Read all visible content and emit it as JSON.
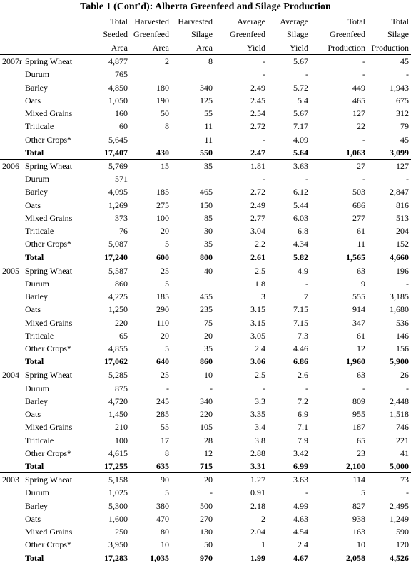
{
  "title": "Table 1 (Cont'd):  Alberta Greenfeed and Silage Production",
  "columns": [
    [
      "Total",
      "Seeded",
      "Area"
    ],
    [
      "Harvested",
      "Greenfeed",
      "Area"
    ],
    [
      "Harvested",
      "Silage",
      "Area"
    ],
    [
      "Average",
      "Greenfeed",
      "Yield"
    ],
    [
      "Average",
      "Silage",
      "Yield"
    ],
    [
      "Total",
      "Greenfeed",
      "Production"
    ],
    [
      "Total",
      "Silage",
      "Production"
    ]
  ],
  "groups": [
    {
      "year": "2007r",
      "rows": [
        [
          "Spring Wheat",
          "4,877",
          "2",
          "8",
          "-",
          "5.67",
          "-",
          "45"
        ],
        [
          "Durum",
          "765",
          null,
          null,
          "-",
          "-",
          "-",
          "-"
        ],
        [
          "Barley",
          "4,850",
          "180",
          "340",
          "2.49",
          "5.72",
          "449",
          "1,943"
        ],
        [
          "Oats",
          "1,050",
          "190",
          "125",
          "2.45",
          "5.4",
          "465",
          "675"
        ],
        [
          "Mixed Grains",
          "160",
          "50",
          "55",
          "2.54",
          "5.67",
          "127",
          "312"
        ],
        [
          "Triticale",
          "60",
          "8",
          "11",
          "2.72",
          "7.17",
          "22",
          "79"
        ],
        [
          "Other Crops*",
          "5,645",
          null,
          "11",
          "-",
          "4.09",
          "-",
          "45"
        ],
        [
          "Total",
          "17,407",
          "430",
          "550",
          "2.47",
          "5.64",
          "1,063",
          "3,099"
        ]
      ]
    },
    {
      "year": "2006",
      "rows": [
        [
          "Spring Wheat",
          "5,769",
          "15",
          "35",
          "1.81",
          "3.63",
          "27",
          "127"
        ],
        [
          "Durum",
          "571",
          null,
          null,
          "-",
          "-",
          "-",
          "-"
        ],
        [
          "Barley",
          "4,095",
          "185",
          "465",
          "2.72",
          "6.12",
          "503",
          "2,847"
        ],
        [
          "Oats",
          "1,269",
          "275",
          "150",
          "2.49",
          "5.44",
          "686",
          "816"
        ],
        [
          "Mixed Grains",
          "373",
          "100",
          "85",
          "2.77",
          "6.03",
          "277",
          "513"
        ],
        [
          "Triticale",
          "76",
          "20",
          "30",
          "3.04",
          "6.8",
          "61",
          "204"
        ],
        [
          "Other Crops*",
          "5,087",
          "5",
          "35",
          "2.2",
          "4.34",
          "11",
          "152"
        ],
        [
          "Total",
          "17,240",
          "600",
          "800",
          "2.61",
          "5.82",
          "1,565",
          "4,660"
        ]
      ]
    },
    {
      "year": "2005",
      "rows": [
        [
          "Spring Wheat",
          "5,587",
          "25",
          "40",
          "2.5",
          "4.9",
          "63",
          "196"
        ],
        [
          "Durum",
          "860",
          "5",
          null,
          "1.8",
          "-",
          "9",
          "-"
        ],
        [
          "Barley",
          "4,225",
          "185",
          "455",
          "3",
          "7",
          "555",
          "3,185"
        ],
        [
          "Oats",
          "1,250",
          "290",
          "235",
          "3.15",
          "7.15",
          "914",
          "1,680"
        ],
        [
          "Mixed Grains",
          "220",
          "110",
          "75",
          "3.15",
          "7.15",
          "347",
          "536"
        ],
        [
          "Triticale",
          "65",
          "20",
          "20",
          "3.05",
          "7.3",
          "61",
          "146"
        ],
        [
          "Other Crops*",
          "4,855",
          "5",
          "35",
          "2.4",
          "4.46",
          "12",
          "156"
        ],
        [
          "Total",
          "17,062",
          "640",
          "860",
          "3.06",
          "6.86",
          "1,960",
          "5,900"
        ]
      ]
    },
    {
      "year": "2004",
      "rows": [
        [
          "Spring Wheat",
          "5,285",
          "25",
          "10",
          "2.5",
          "2.6",
          "63",
          "26"
        ],
        [
          "Durum",
          "875",
          "-",
          "-",
          "-",
          "-",
          "-",
          "-"
        ],
        [
          "Barley",
          "4,720",
          "245",
          "340",
          "3.3",
          "7.2",
          "809",
          "2,448"
        ],
        [
          "Oats",
          "1,450",
          "285",
          "220",
          "3.35",
          "6.9",
          "955",
          "1,518"
        ],
        [
          "Mixed Grains",
          "210",
          "55",
          "105",
          "3.4",
          "7.1",
          "187",
          "746"
        ],
        [
          "Triticale",
          "100",
          "17",
          "28",
          "3.8",
          "7.9",
          "65",
          "221"
        ],
        [
          "Other Crops*",
          "4,615",
          "8",
          "12",
          "2.88",
          "3.42",
          "23",
          "41"
        ],
        [
          "Total",
          "17,255",
          "635",
          "715",
          "3.31",
          "6.99",
          "2,100",
          "5,000"
        ]
      ]
    },
    {
      "year": "2003",
      "rows": [
        [
          "Spring Wheat",
          "5,158",
          "90",
          "20",
          "1.27",
          "3.63",
          "114",
          "73"
        ],
        [
          "Durum",
          "1,025",
          "5",
          "-",
          "0.91",
          "-",
          "5",
          "-"
        ],
        [
          "Barley",
          "5,300",
          "380",
          "500",
          "2.18",
          "4.99",
          "827",
          "2,495"
        ],
        [
          "Oats",
          "1,600",
          "470",
          "270",
          "2",
          "4.63",
          "938",
          "1,249"
        ],
        [
          "Mixed Grains",
          "250",
          "80",
          "130",
          "2.04",
          "4.54",
          "163",
          "590"
        ],
        [
          "Other Crops*",
          "3,950",
          "10",
          "50",
          "1",
          "2.4",
          "10",
          "120"
        ],
        [
          "Total",
          "17,283",
          "1,035",
          "970",
          "1.99",
          "4.67",
          "2,058",
          "4,526"
        ]
      ]
    }
  ]
}
